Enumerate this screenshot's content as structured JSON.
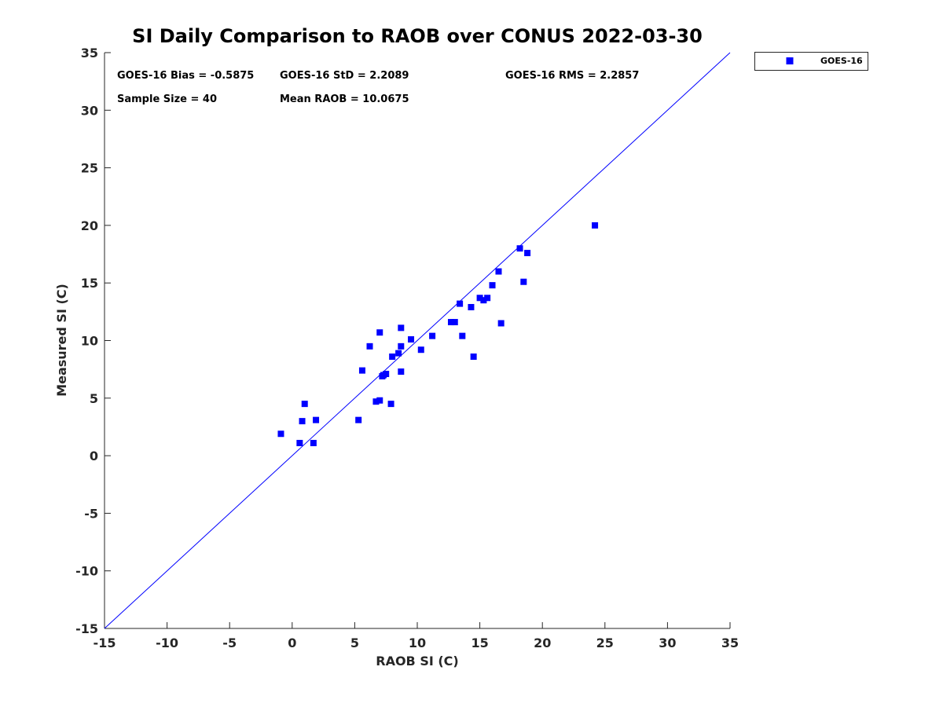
{
  "chart_data": {
    "type": "scatter",
    "title": "SI Daily Comparison to RAOB over CONUS 2022-03-30",
    "xlabel": "RAOB SI (C)",
    "ylabel": "Measured SI (C)",
    "xlim": [
      -15,
      35
    ],
    "ylim": [
      -15,
      35
    ],
    "xticks": [
      "-15",
      "-10",
      "-5",
      "0",
      "5",
      "10",
      "15",
      "20",
      "25",
      "30",
      "35"
    ],
    "yticks": [
      "-15",
      "-10",
      "-5",
      "0",
      "5",
      "10",
      "15",
      "20",
      "25",
      "30",
      "35"
    ],
    "grid": false,
    "legend_position": "outside-top-right",
    "reference_line": {
      "type": "one-to-one",
      "from": [
        -15,
        -15
      ],
      "to": [
        35,
        35
      ],
      "color": "#0000ff"
    },
    "annotations": {
      "bias": "GOES-16 Bias = -0.5875",
      "std": "GOES-16 StD = 2.2089",
      "rms": "GOES-16 RMS = 2.2857",
      "sample_size": "Sample Size = 40",
      "mean_raob": "Mean RAOB = 10.0675"
    },
    "series": [
      {
        "name": "GOES-16",
        "color": "#0000ff",
        "marker": "square",
        "points": [
          [
            -0.9,
            1.9
          ],
          [
            0.6,
            1.1
          ],
          [
            0.8,
            3.0
          ],
          [
            1.0,
            4.5
          ],
          [
            1.7,
            1.1
          ],
          [
            1.9,
            3.1
          ],
          [
            5.3,
            3.1
          ],
          [
            5.6,
            7.4
          ],
          [
            6.2,
            9.5
          ],
          [
            6.7,
            4.7
          ],
          [
            7.0,
            4.8
          ],
          [
            7.0,
            10.7
          ],
          [
            7.2,
            6.9
          ],
          [
            7.3,
            7.0
          ],
          [
            7.5,
            7.1
          ],
          [
            7.9,
            4.5
          ],
          [
            8.0,
            8.6
          ],
          [
            8.5,
            8.9
          ],
          [
            8.7,
            7.3
          ],
          [
            8.7,
            9.5
          ],
          [
            8.7,
            11.1
          ],
          [
            9.5,
            10.1
          ],
          [
            10.3,
            9.2
          ],
          [
            11.2,
            10.4
          ],
          [
            12.7,
            11.6
          ],
          [
            13.0,
            11.6
          ],
          [
            13.4,
            13.2
          ],
          [
            13.6,
            10.4
          ],
          [
            14.3,
            12.9
          ],
          [
            14.5,
            8.6
          ],
          [
            15.0,
            13.7
          ],
          [
            15.3,
            13.5
          ],
          [
            15.6,
            13.7
          ],
          [
            16.0,
            14.8
          ],
          [
            16.5,
            16.0
          ],
          [
            16.7,
            11.5
          ],
          [
            18.2,
            18.0
          ],
          [
            18.5,
            15.1
          ],
          [
            18.8,
            17.6
          ],
          [
            24.2,
            20.0
          ]
        ]
      }
    ]
  }
}
